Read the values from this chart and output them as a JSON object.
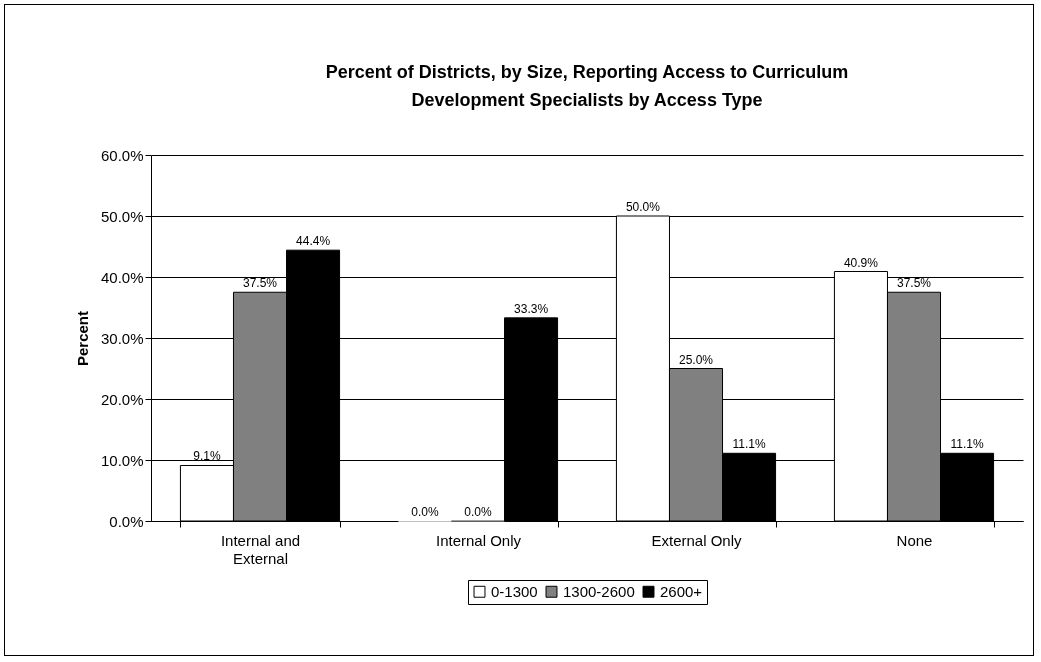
{
  "chart_data": {
    "type": "bar",
    "title": "Percent of Districts, by Size, Reporting Access to Curriculum Development Specialists by Access Type",
    "ylabel": "Percent",
    "categories": [
      "Internal and External",
      "Internal Only",
      "External Only",
      "None"
    ],
    "series": [
      {
        "name": "0-1300",
        "color": "#ffffff",
        "values": [
          9.1,
          0.0,
          50.0,
          40.9
        ],
        "value_labels": [
          "9.1%",
          "0.0%",
          "50.0%",
          "40.9%"
        ]
      },
      {
        "name": "1300-2600",
        "color": "#808080",
        "values": [
          37.5,
          0.0,
          25.0,
          37.5
        ],
        "value_labels": [
          "37.5%",
          "0.0%",
          "25.0%",
          "37.5%"
        ]
      },
      {
        "name": "2600+",
        "color": "#000000",
        "values": [
          44.4,
          33.3,
          11.1,
          11.1
        ],
        "value_labels": [
          "44.4%",
          "33.3%",
          "11.1%",
          "11.1%"
        ]
      }
    ],
    "ylim": [
      0,
      60
    ],
    "yticks": [
      {
        "value": 0,
        "label": "0.0%"
      },
      {
        "value": 10,
        "label": "10.0%"
      },
      {
        "value": 20,
        "label": "20.0%"
      },
      {
        "value": 30,
        "label": "30.0%"
      },
      {
        "value": 40,
        "label": "40.0%"
      },
      {
        "value": 50,
        "label": "50.0%"
      },
      {
        "value": 60,
        "label": "60.0%"
      }
    ],
    "grid": "y",
    "legend": "bottom"
  }
}
